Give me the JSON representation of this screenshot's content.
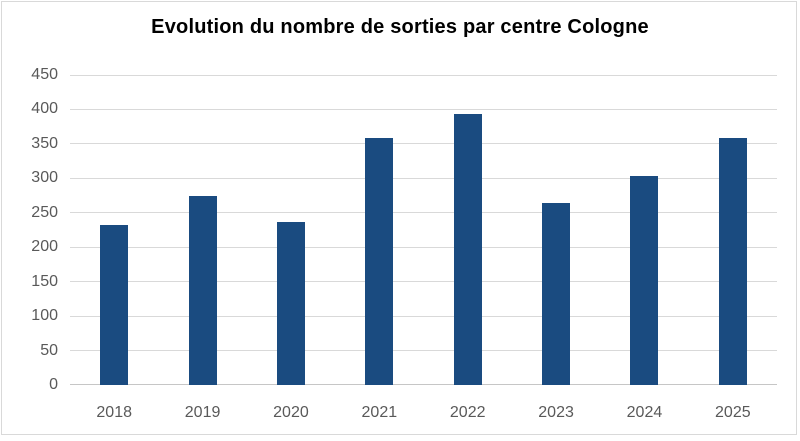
{
  "chart_data": {
    "type": "bar",
    "title": "Evolution du nombre de sorties par centre Cologne",
    "categories": [
      "2018",
      "2019",
      "2020",
      "2021",
      "2022",
      "2023",
      "2024",
      "2025"
    ],
    "values": [
      233,
      275,
      236,
      359,
      394,
      264,
      304,
      359
    ],
    "xlabel": "",
    "ylabel": "",
    "ylim": [
      0,
      450
    ],
    "ytick_step": 50,
    "ytick_labels": [
      "0",
      "50",
      "100",
      "150",
      "200",
      "250",
      "300",
      "350",
      "400",
      "450"
    ],
    "grid": "horizontal",
    "legend": "none",
    "colors": {
      "bar_fill": "#1A4B80",
      "gridline": "#D9D9D9",
      "axis_line": "#C6C6C6",
      "tick_label": "#595959",
      "title": "#000000",
      "background": "#FFFFFF",
      "frame_border": "#D9D9D9"
    }
  }
}
